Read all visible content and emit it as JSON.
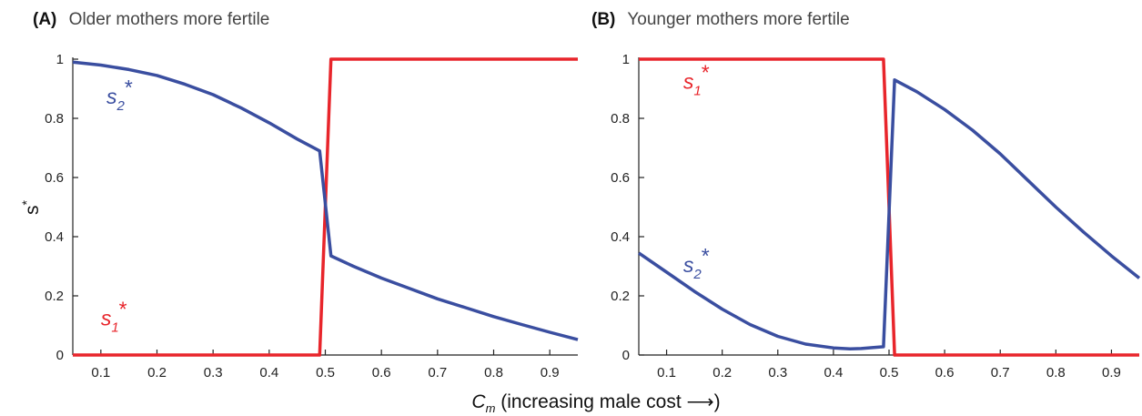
{
  "figure": {
    "xlabel_var": "C",
    "xlabel_sub": "m",
    "xlabel_rest": " (increasing male cost ",
    "xlabel_arrow": "⟶",
    "xlabel_close": ")",
    "ylabel_var": "s",
    "ylabel_sup": "*"
  },
  "colors": {
    "red": "#e8252b",
    "blue": "#3a4ea0"
  },
  "chart_data": [
    {
      "type": "line",
      "panel_letter": "(A)",
      "title": "Older mothers more fertile",
      "xlim": [
        0.05,
        0.95
      ],
      "ylim": [
        0,
        1
      ],
      "xticks": [
        0.1,
        0.2,
        0.3,
        0.4,
        0.5,
        0.6,
        0.7,
        0.8,
        0.9
      ],
      "yticks": [
        0,
        0.2,
        0.4,
        0.6,
        0.8,
        1
      ],
      "ytick_labels": [
        "0",
        "0.2",
        "0.4",
        "0.6",
        "0.8",
        "1"
      ],
      "show_ylabel": true,
      "series": [
        {
          "name": "s1*",
          "label_base": "s",
          "label_sub": "1",
          "label_sup": "*",
          "color": "#e8252b",
          "x": [
            0.05,
            0.49,
            0.51,
            0.95
          ],
          "y": [
            0,
            0,
            1,
            1
          ]
        },
        {
          "name": "s2*",
          "label_base": "s",
          "label_sub": "2",
          "label_sup": "*",
          "color": "#3a4ea0",
          "x": [
            0.05,
            0.1,
            0.15,
            0.2,
            0.25,
            0.3,
            0.35,
            0.4,
            0.45,
            0.49,
            0.51,
            0.55,
            0.6,
            0.65,
            0.7,
            0.75,
            0.8,
            0.85,
            0.9,
            0.95
          ],
          "y": [
            0.99,
            0.98,
            0.965,
            0.945,
            0.915,
            0.88,
            0.835,
            0.785,
            0.73,
            0.69,
            0.335,
            0.3,
            0.26,
            0.225,
            0.19,
            0.16,
            0.13,
            0.103,
            0.077,
            0.052
          ]
        }
      ],
      "annotations": [
        {
          "series": "s2*",
          "x": 0.11,
          "y": 0.85
        },
        {
          "series": "s1*",
          "x": 0.1,
          "y": 0.1
        }
      ]
    },
    {
      "type": "line",
      "panel_letter": "(B)",
      "title": "Younger mothers more fertile",
      "xlim": [
        0.05,
        0.95
      ],
      "ylim": [
        0,
        1
      ],
      "xticks": [
        0.1,
        0.2,
        0.3,
        0.4,
        0.5,
        0.6,
        0.7,
        0.8,
        0.9
      ],
      "yticks": [
        0,
        0.2,
        0.4,
        0.6,
        0.8,
        1
      ],
      "ytick_labels": [
        "0",
        "0.2",
        "0.4",
        "0.6",
        "0.8",
        "1"
      ],
      "show_ylabel": false,
      "series": [
        {
          "name": "s1*",
          "label_base": "s",
          "label_sub": "1",
          "label_sup": "*",
          "color": "#e8252b",
          "x": [
            0.05,
            0.49,
            0.51,
            0.95
          ],
          "y": [
            1,
            1,
            0,
            0
          ]
        },
        {
          "name": "s2*",
          "label_base": "s",
          "label_sub": "2",
          "label_sup": "*",
          "color": "#3a4ea0",
          "x": [
            0.05,
            0.1,
            0.15,
            0.2,
            0.25,
            0.3,
            0.35,
            0.4,
            0.43,
            0.45,
            0.49,
            0.51,
            0.55,
            0.6,
            0.65,
            0.7,
            0.75,
            0.8,
            0.85,
            0.9,
            0.95
          ],
          "y": [
            0.345,
            0.28,
            0.215,
            0.155,
            0.103,
            0.063,
            0.037,
            0.024,
            0.021,
            0.022,
            0.028,
            0.93,
            0.89,
            0.83,
            0.76,
            0.68,
            0.59,
            0.5,
            0.415,
            0.335,
            0.26
          ]
        }
      ],
      "annotations": [
        {
          "series": "s1*",
          "x": 0.13,
          "y": 0.9
        },
        {
          "series": "s2*",
          "x": 0.13,
          "y": 0.28
        }
      ]
    }
  ]
}
